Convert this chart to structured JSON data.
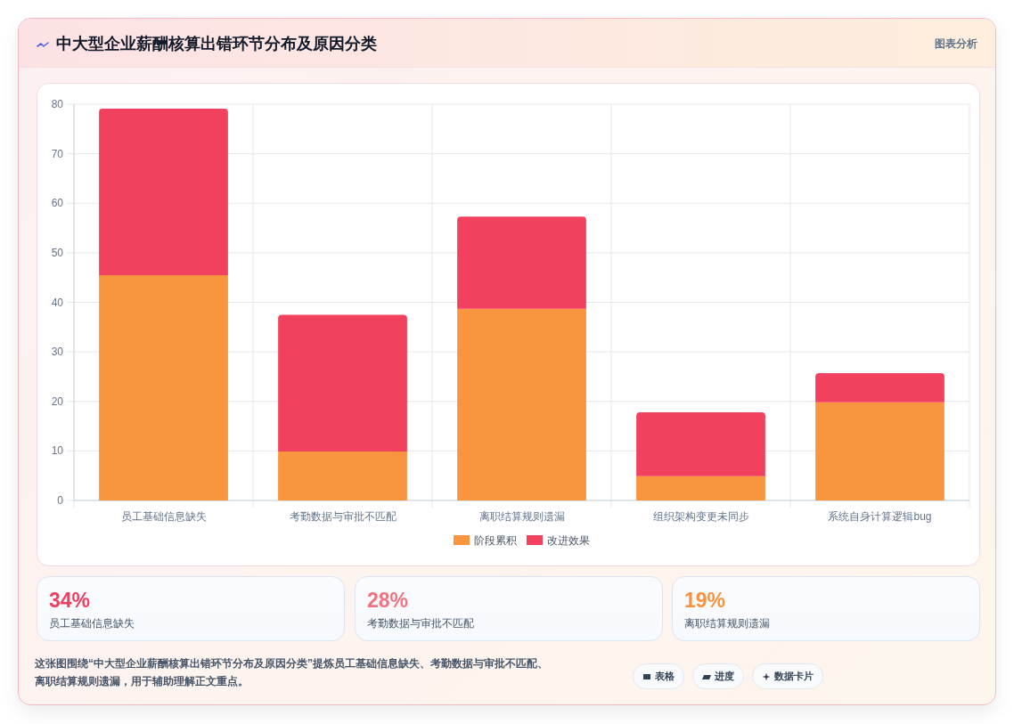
{
  "chart_data": {
    "type": "bar",
    "title": "中大型企业薪酬核算出错环节分布及原因分类",
    "categories": [
      "员工基础信息缺失",
      "考勤数据与审批不匹配",
      "离职结算规则遗漏",
      "组织架构变更未同步",
      "系统自身计算逻辑bug"
    ],
    "series": [
      {
        "name": "阶段累积",
        "color": "#f9943f",
        "values": [
          45.5,
          9.9,
          38.7,
          4.9,
          19.8
        ]
      },
      {
        "name": "改进效果",
        "color": "#f2405f",
        "values": [
          33.6,
          27.6,
          18.6,
          12.9,
          5.9
        ]
      }
    ],
    "stacked": true,
    "ylim": [
      0,
      80
    ],
    "yticks": [
      0,
      10,
      20,
      30,
      40,
      50,
      60,
      70,
      80
    ],
    "grid": true,
    "legend": "bottom",
    "annotations": [
      "图表分析",
      "34%",
      "员工基础信息缺失",
      "28%",
      "考勤数据与审批不匹配",
      "19%",
      "离职结算规则遗漏",
      "这张图围绕“中大型企业薪酬核算出错环节分布及原因分类”提炼员工基础信息缺失、考勤数据与审批不匹配、离职结算规则遗漏，用于辅助理解正文重点。",
      "表格",
      "进度",
      "数据卡片"
    ]
  }
}
